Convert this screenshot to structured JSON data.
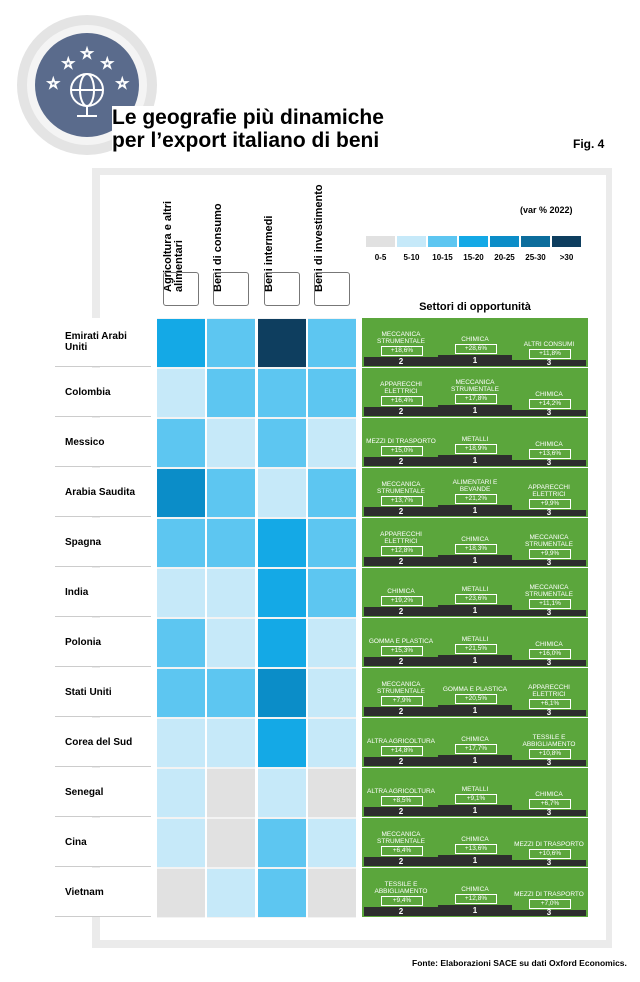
{
  "header": {
    "title_line1": "Le geografie più dinamiche",
    "title_line2": "per l’export italiano di beni",
    "fig": "Fig. 4"
  },
  "legend": {
    "caption": "(var % 2022)",
    "classes": [
      {
        "label": "0-5",
        "color": "#e1e1e1"
      },
      {
        "label": "5-10",
        "color": "#c6e9f9"
      },
      {
        "label": "10-15",
        "color": "#5dc6f1"
      },
      {
        "label": "15-20",
        "color": "#14a9e6"
      },
      {
        "label": "20-25",
        "color": "#0b8dc8"
      },
      {
        "label": "25-30",
        "color": "#0c6d9c"
      },
      {
        "label": ">30",
        "color": "#0e3e5f"
      }
    ]
  },
  "columns": [
    "Agricoltura e altri alimentari",
    "Beni di consumo",
    "Beni intermedi",
    "Beni di investimento"
  ],
  "opportunity_title": "Settori di opportunità",
  "rows": [
    {
      "country": "Emirati Arabi Uniti",
      "cells": [
        "15-20",
        "10-15",
        ">30",
        "10-15"
      ],
      "sectors": [
        {
          "rank": "2",
          "name": "MECCANICA STRUMENTALE",
          "value": "+18,6%"
        },
        {
          "rank": "1",
          "name": "CHIMICA",
          "value": "+28,6%"
        },
        {
          "rank": "3",
          "name": "ALTRI CONSUMI",
          "value": "+11,8%"
        }
      ]
    },
    {
      "country": "Colombia",
      "cells": [
        "5-10",
        "10-15",
        "10-15",
        "10-15"
      ],
      "sectors": [
        {
          "rank": "2",
          "name": "APPARECCHI ELETTRICI",
          "value": "+16,4%"
        },
        {
          "rank": "1",
          "name": "MECCANICA STRUMENTALE",
          "value": "+17,8%"
        },
        {
          "rank": "3",
          "name": "CHIMICA",
          "value": "+14,2%"
        }
      ]
    },
    {
      "country": "Messico",
      "cells": [
        "10-15",
        "5-10",
        "10-15",
        "5-10"
      ],
      "sectors": [
        {
          "rank": "2",
          "name": "MEZZI DI TRASPORTO",
          "value": "+15,0%"
        },
        {
          "rank": "1",
          "name": "METALLI",
          "value": "+18,9%"
        },
        {
          "rank": "3",
          "name": "CHIMICA",
          "value": "+13,6%"
        }
      ]
    },
    {
      "country": "Arabia Saudita",
      "cells": [
        "20-25",
        "10-15",
        "5-10",
        "10-15"
      ],
      "sectors": [
        {
          "rank": "2",
          "name": "MECCANICA STRUMENTALE",
          "value": "+13,7%"
        },
        {
          "rank": "1",
          "name": "ALIMENTARI E BEVANDE",
          "value": "+21,2%"
        },
        {
          "rank": "3",
          "name": "APPARECCHI ELETTRICI",
          "value": "+9,9%"
        }
      ]
    },
    {
      "country": "Spagna",
      "cells": [
        "10-15",
        "10-15",
        "15-20",
        "10-15"
      ],
      "sectors": [
        {
          "rank": "2",
          "name": "APPARECCHI ELETTRICI",
          "value": "+12,8%"
        },
        {
          "rank": "1",
          "name": "CHIMICA",
          "value": "+18,3%"
        },
        {
          "rank": "3",
          "name": "MECCANICA STRUMENTALE",
          "value": "+9,9%"
        }
      ]
    },
    {
      "country": "India",
      "cells": [
        "5-10",
        "5-10",
        "15-20",
        "10-15"
      ],
      "sectors": [
        {
          "rank": "2",
          "name": "CHIMICA",
          "value": "+19,2%"
        },
        {
          "rank": "1",
          "name": "METALLI",
          "value": "+23,6%"
        },
        {
          "rank": "3",
          "name": "MECCANICA STRUMENTALE",
          "value": "+11,1%"
        }
      ]
    },
    {
      "country": "Polonia",
      "cells": [
        "10-15",
        "5-10",
        "15-20",
        "5-10"
      ],
      "sectors": [
        {
          "rank": "2",
          "name": "GOMMA E PLASTICA",
          "value": "+15,3%"
        },
        {
          "rank": "1",
          "name": "METALLI",
          "value": "+21,5%"
        },
        {
          "rank": "3",
          "name": "CHIMICA",
          "value": "+16,0%"
        }
      ]
    },
    {
      "country": "Stati Uniti",
      "cells": [
        "10-15",
        "10-15",
        "20-25",
        "5-10"
      ],
      "sectors": [
        {
          "rank": "2",
          "name": "MECCANICA STRUMENTALE",
          "value": "+7,9%"
        },
        {
          "rank": "1",
          "name": "GOMMA E PLASTICA",
          "value": "+20,5%"
        },
        {
          "rank": "3",
          "name": "APPARECCHI ELETTRICI",
          "value": "+6,1%"
        }
      ]
    },
    {
      "country": "Corea del Sud",
      "cells": [
        "5-10",
        "5-10",
        "15-20",
        "5-10"
      ],
      "sectors": [
        {
          "rank": "2",
          "name": "ALTRA AGRICOLTURA",
          "value": "+14,8%"
        },
        {
          "rank": "1",
          "name": "CHIMICA",
          "value": "+17,7%"
        },
        {
          "rank": "3",
          "name": "TESSILE E ABBIGLIAMENTO",
          "value": "+10,8%"
        }
      ]
    },
    {
      "country": "Senegal",
      "cells": [
        "5-10",
        "0-5",
        "5-10",
        "0-5"
      ],
      "sectors": [
        {
          "rank": "2",
          "name": "ALTRA AGRICOLTURA",
          "value": "+8,5%"
        },
        {
          "rank": "1",
          "name": "METALLI",
          "value": "+9,1%"
        },
        {
          "rank": "3",
          "name": "CHIMICA",
          "value": "+6,7%"
        }
      ]
    },
    {
      "country": "Cina",
      "cells": [
        "5-10",
        "0-5",
        "10-15",
        "5-10"
      ],
      "sectors": [
        {
          "rank": "2",
          "name": "MECCANICA STRUMENTALE",
          "value": "+6,4%"
        },
        {
          "rank": "1",
          "name": "CHIMICA",
          "value": "+13,6%"
        },
        {
          "rank": "3",
          "name": "MEZZI DI TRASPORTO",
          "value": "+10,6%"
        }
      ]
    },
    {
      "country": "Vietnam",
      "cells": [
        "0-5",
        "5-10",
        "10-15",
        "0-5"
      ],
      "sectors": [
        {
          "rank": "2",
          "name": "TESSILE E ABBIGLIAMENTO",
          "value": "+9,4%"
        },
        {
          "rank": "1",
          "name": "CHIMICA",
          "value": "+12,8%"
        },
        {
          "rank": "3",
          "name": "MEZZI DI TRASPORTO",
          "value": "+7,0%"
        }
      ]
    }
  ],
  "source": "Fonte: Elaborazioni SACE su dati Oxford Economics."
}
